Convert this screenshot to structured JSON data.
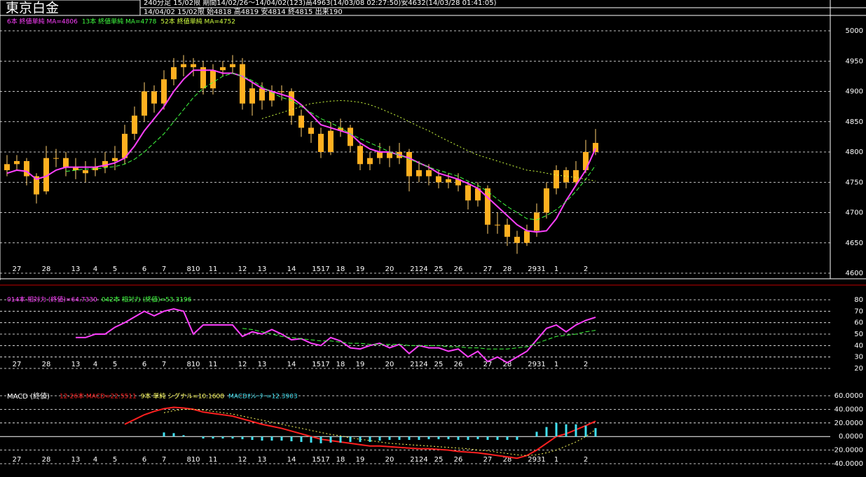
{
  "header": {
    "title": "東京白金",
    "info_line1": "240分足 15/02限 期間14/02/26～14/04/02(123)高4963(14/03/08 02:27:50)安4632(14/03/28 01:41:05)",
    "info_line2": "14/04/02 15/02限 始4818 高4819 安4814 終4815 出来190"
  },
  "chart_data": [
    {
      "type": "candlestick",
      "categories": [
        null,
        "27",
        null,
        null,
        "28",
        null,
        null,
        "13",
        null,
        "4",
        null,
        "5",
        null,
        null,
        "6",
        null,
        "7",
        null,
        null,
        "810",
        null,
        "11",
        null,
        null,
        "12",
        null,
        "13",
        null,
        null,
        "14",
        null,
        null,
        "1517",
        null,
        "18",
        null,
        "19",
        null,
        null,
        "20",
        null,
        null,
        "2124",
        null,
        "25",
        null,
        "26",
        null,
        null,
        "27",
        null,
        "28",
        null,
        null,
        "2931",
        null,
        "1",
        null,
        null,
        "2",
        null
      ],
      "open": [
        4770,
        4780,
        4785,
        4760,
        4735,
        4790,
        4790,
        4775,
        4765,
        4770,
        4775,
        4785,
        4790,
        4830,
        4860,
        4900,
        4880,
        4920,
        4940,
        4945,
        4940,
        4905,
        4935,
        4940,
        4945,
        4880,
        4905,
        4885,
        4900,
        4900,
        4860,
        4840,
        4830,
        4800,
        4835,
        4840,
        4810,
        4780,
        4790,
        4800,
        4790,
        4800,
        4760,
        4770,
        4760,
        4750,
        4755,
        4745,
        4720,
        4740,
        4680,
        4680,
        4660,
        4650,
        4670,
        4700,
        4740,
        4770,
        4750,
        4770,
        4800
      ],
      "high": [
        4795,
        4795,
        4790,
        4765,
        4810,
        4805,
        4800,
        4790,
        4785,
        4790,
        4800,
        4810,
        4845,
        4875,
        4915,
        4910,
        4935,
        4955,
        4960,
        4955,
        4950,
        4945,
        4950,
        4960,
        4955,
        4915,
        4915,
        4910,
        4910,
        4905,
        4870,
        4850,
        4840,
        4850,
        4855,
        4845,
        4815,
        4800,
        4815,
        4810,
        4815,
        4805,
        4785,
        4780,
        4770,
        4765,
        4765,
        4750,
        4750,
        4745,
        4700,
        4690,
        4670,
        4680,
        4715,
        4750,
        4778,
        4775,
        4785,
        4820,
        4838
      ],
      "low": [
        4760,
        4770,
        4745,
        4715,
        4730,
        4775,
        4760,
        4755,
        4750,
        4760,
        4765,
        4770,
        4780,
        4820,
        4850,
        4865,
        4870,
        4910,
        4925,
        4925,
        4895,
        4895,
        4925,
        4930,
        4870,
        4860,
        4870,
        4875,
        4885,
        4845,
        4825,
        4815,
        4790,
        4795,
        4825,
        4800,
        4770,
        4770,
        4780,
        4775,
        4780,
        4735,
        4750,
        4745,
        4740,
        4740,
        4735,
        4705,
        4710,
        4665,
        4665,
        4645,
        4632,
        4645,
        4660,
        4690,
        4730,
        4740,
        4745,
        4765,
        4795
      ],
      "close": [
        4780,
        4785,
        4760,
        4730,
        4790,
        4790,
        4775,
        4770,
        4770,
        4775,
        4785,
        4790,
        4830,
        4860,
        4900,
        4880,
        4920,
        4940,
        4945,
        4940,
        4905,
        4935,
        4940,
        4945,
        4880,
        4905,
        4885,
        4900,
        4900,
        4860,
        4840,
        4830,
        4800,
        4835,
        4840,
        4810,
        4780,
        4790,
        4800,
        4790,
        4800,
        4760,
        4770,
        4760,
        4750,
        4755,
        4745,
        4720,
        4740,
        4680,
        4680,
        4660,
        4650,
        4670,
        4700,
        4740,
        4770,
        4750,
        4770,
        4800,
        4815
      ],
      "candle_color": "#ffb020",
      "wick_color": "#ffd070",
      "series": [
        {
          "name": "6本 終値単純 MA=4806",
          "color": "#ff40ff",
          "style": "solid",
          "values": [
            4765,
            4770,
            4768,
            4755,
            4760,
            4770,
            4775,
            4775,
            4775,
            4775,
            4778,
            4782,
            4790,
            4810,
            4835,
            4855,
            4875,
            4900,
            4920,
            4935,
            4935,
            4935,
            4930,
            4930,
            4925,
            4915,
            4905,
            4900,
            4895,
            4890,
            4878,
            4862,
            4845,
            4840,
            4835,
            4830,
            4815,
            4805,
            4800,
            4800,
            4795,
            4790,
            4782,
            4775,
            4765,
            4760,
            4755,
            4748,
            4740,
            4725,
            4710,
            4695,
            4680,
            4670,
            4668,
            4670,
            4690,
            4720,
            4745,
            4770,
            4806
          ]
        },
        {
          "name": "13本 終値単純 MA=4778",
          "color": "#40ff40",
          "style": "dashed",
          "values": [
            null,
            null,
            null,
            null,
            null,
            null,
            4768,
            4770,
            4772,
            4772,
            4774,
            4776,
            4780,
            4788,
            4800,
            4815,
            4830,
            4850,
            4870,
            4890,
            4905,
            4915,
            4925,
            4930,
            4925,
            4918,
            4908,
            4898,
            4890,
            4885,
            4875,
            4865,
            4855,
            4848,
            4840,
            4830,
            4822,
            4815,
            4808,
            4800,
            4795,
            4788,
            4782,
            4775,
            4770,
            4765,
            4760,
            4752,
            4745,
            4735,
            4722,
            4710,
            4700,
            4690,
            4688,
            4695,
            4705,
            4718,
            4735,
            4755,
            4778
          ]
        },
        {
          "name": "52本 終値単純 MA=4752",
          "color": "#d0ff40",
          "style": "dotted",
          "values": [
            null,
            null,
            null,
            null,
            null,
            null,
            null,
            null,
            null,
            null,
            null,
            null,
            null,
            null,
            null,
            null,
            null,
            null,
            null,
            null,
            null,
            null,
            null,
            null,
            null,
            null,
            4855,
            4860,
            4865,
            4870,
            4875,
            4880,
            4882,
            4884,
            4885,
            4884,
            4882,
            4878,
            4872,
            4865,
            4858,
            4850,
            4842,
            4835,
            4826,
            4818,
            4810,
            4802,
            4795,
            4790,
            4785,
            4780,
            4775,
            4770,
            4768,
            4765,
            4762,
            4760,
            4758,
            4755,
            4752
          ]
        }
      ],
      "ylim": [
        4600,
        5000
      ],
      "yticks": [
        4600,
        4650,
        4700,
        4750,
        4800,
        4850,
        4900,
        4950,
        5000
      ],
      "grid": true
    },
    {
      "type": "line",
      "series": [
        {
          "name": "014本 相対力 (終値)=64.7330",
          "color": "#ff40ff",
          "style": "solid",
          "values": [
            null,
            null,
            null,
            null,
            null,
            null,
            null,
            47,
            47,
            50,
            50,
            56,
            60,
            65,
            70,
            66,
            70,
            72,
            70,
            50,
            58,
            58,
            58,
            58,
            48,
            52,
            50,
            54,
            50,
            45,
            46,
            42,
            40,
            47,
            44,
            38,
            37,
            40,
            42,
            38,
            41,
            33,
            40,
            38,
            38,
            35,
            37,
            30,
            35,
            26,
            30,
            25,
            30,
            35,
            45,
            55,
            58,
            52,
            58,
            62,
            64.733
          ]
        },
        {
          "name": "042本 相対力 (終値)=53.3196",
          "color": "#40ff40",
          "style": "dashed",
          "values": [
            null,
            null,
            null,
            null,
            null,
            null,
            null,
            null,
            null,
            null,
            null,
            null,
            null,
            null,
            null,
            null,
            null,
            null,
            null,
            null,
            null,
            null,
            null,
            null,
            55,
            54,
            52,
            50,
            48,
            47,
            46,
            45,
            44,
            44,
            43,
            42,
            42,
            41,
            41,
            41,
            41,
            40,
            40,
            40,
            40,
            39,
            39,
            38,
            38,
            37,
            37,
            37,
            38,
            39,
            42,
            45,
            48,
            49,
            50,
            52,
            53.3196
          ]
        }
      ],
      "ylim": [
        20,
        80
      ],
      "yticks": [
        20,
        30,
        40,
        50,
        60,
        70,
        80
      ],
      "grid": true
    },
    {
      "type": "macd",
      "title": "MACD (終値)",
      "series": [
        {
          "name": "12-26本 MACD=22.5511",
          "color": "#ff2020",
          "style": "solid",
          "values": [
            null,
            null,
            null,
            null,
            null,
            null,
            null,
            null,
            null,
            null,
            null,
            null,
            18,
            25,
            32,
            37,
            41,
            43,
            42,
            40,
            36,
            34,
            32,
            30,
            26,
            22,
            18,
            15,
            12,
            8,
            4,
            0,
            -4,
            -6,
            -8,
            -10,
            -12,
            -14,
            -14,
            -15,
            -16,
            -17,
            -18,
            -18,
            -19,
            -20,
            -22,
            -23,
            -24,
            -26,
            -28,
            -30,
            -32,
            -28,
            -20,
            -10,
            0,
            4,
            10,
            16,
            22.5511
          ]
        },
        {
          "name": "9本 単純 シグナル=10.1608",
          "color": "#ffff60",
          "style": "dotted",
          "values": [
            null,
            null,
            null,
            null,
            null,
            null,
            null,
            null,
            null,
            null,
            null,
            null,
            null,
            null,
            null,
            null,
            35,
            38,
            40,
            40,
            39,
            37,
            35,
            33,
            30,
            27,
            24,
            21,
            18,
            15,
            12,
            9,
            6,
            3,
            1,
            -2,
            -4,
            -6,
            -8,
            -10,
            -11,
            -12,
            -13,
            -14,
            -15,
            -16,
            -17,
            -18,
            -20,
            -21,
            -23,
            -25,
            -27,
            -28,
            -27,
            -24,
            -20,
            -14,
            -8,
            0,
            10.1608
          ]
        },
        {
          "name": "MACDｵｼﾚｰﾀｰ=12.3903",
          "color": "#40e0f0",
          "style": "bar",
          "values": [
            null,
            null,
            null,
            null,
            null,
            null,
            null,
            null,
            null,
            null,
            null,
            null,
            null,
            null,
            null,
            null,
            6,
            5,
            2,
            0,
            -3,
            -3,
            -3,
            -3,
            -4,
            -5,
            -6,
            -6,
            -6,
            -7,
            -8,
            -9,
            -10,
            -9,
            -9,
            -8,
            -8,
            -8,
            -6,
            -5,
            -5,
            -5,
            -5,
            -4,
            -4,
            -4,
            -5,
            -5,
            -4,
            -5,
            -5,
            -5,
            -5,
            0,
            7,
            14,
            20,
            18,
            18,
            16,
            12.3903
          ]
        }
      ],
      "ylim": [
        -40,
        60
      ],
      "yticks": [
        {
          "value": -40,
          "label": "-40.0000"
        },
        {
          "value": -20,
          "label": "-20.0000"
        },
        {
          "value": 0,
          "label": "0.0000"
        },
        {
          "value": 20,
          "label": "20.0000"
        },
        {
          "value": 40,
          "label": "40.0000"
        },
        {
          "value": 60,
          "label": "60.0000"
        }
      ],
      "grid": true
    }
  ]
}
